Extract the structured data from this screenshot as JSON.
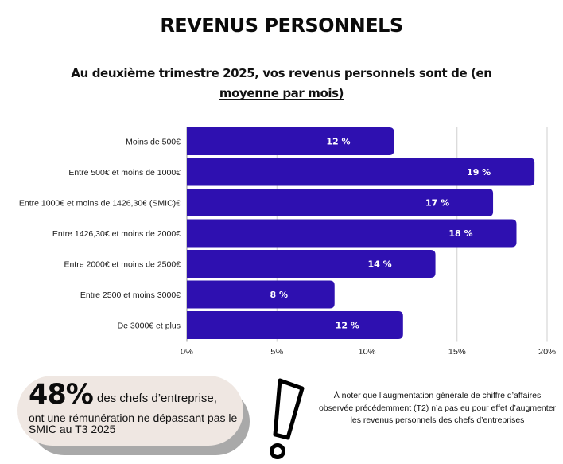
{
  "header": {
    "title": "REVENUS PERSONNELS",
    "subtitle": "Au deuxième trimestre 2025, vos revenus personnels sont de (en moyenne par mois)"
  },
  "chart_data": {
    "type": "bar",
    "orientation": "horizontal",
    "title": "Au deuxième trimestre 2025, vos revenus personnels sont de (en moyenne par mois)",
    "xlabel": "",
    "ylabel": "",
    "categories": [
      "Moins de 500€",
      "Entre 500€ et moins de 1000€",
      "Entre 1000€ et moins de 1426,30€ (SMIC)€",
      "Entre 1426,30€ et moins de 2000€",
      "Entre 2000€ et moins de 2500€",
      "Entre 2500 et moins 3000€",
      "De 3000€ et plus"
    ],
    "values": [
      11.5,
      19.3,
      17.0,
      18.3,
      13.8,
      8.2,
      12.0
    ],
    "value_labels": [
      "12 %",
      "19 %",
      "17 %",
      "18 %",
      "14 %",
      "8 %",
      "12 %"
    ],
    "xlim": [
      0,
      20
    ],
    "xticks": [
      0,
      5,
      10,
      15,
      20
    ],
    "xtick_labels": [
      "0%",
      "5%",
      "10%",
      "15%",
      "20%"
    ],
    "grid": true,
    "legend": "none",
    "bar_color": "#2E10B0"
  },
  "stat_callout": {
    "big_number": "48%",
    "line1": "des chefs d’entreprise,",
    "line2": "ont une rémunération ne dépassant pas le SMIC au T3 2025"
  },
  "note": {
    "icon": "exclamation-icon",
    "text": "À noter que l’augmentation générale de chiffre d’affaires observée précédemment (T2) n’a pas eu pour effet d’augmenter les revenus personnels des chefs d’entreprises"
  }
}
